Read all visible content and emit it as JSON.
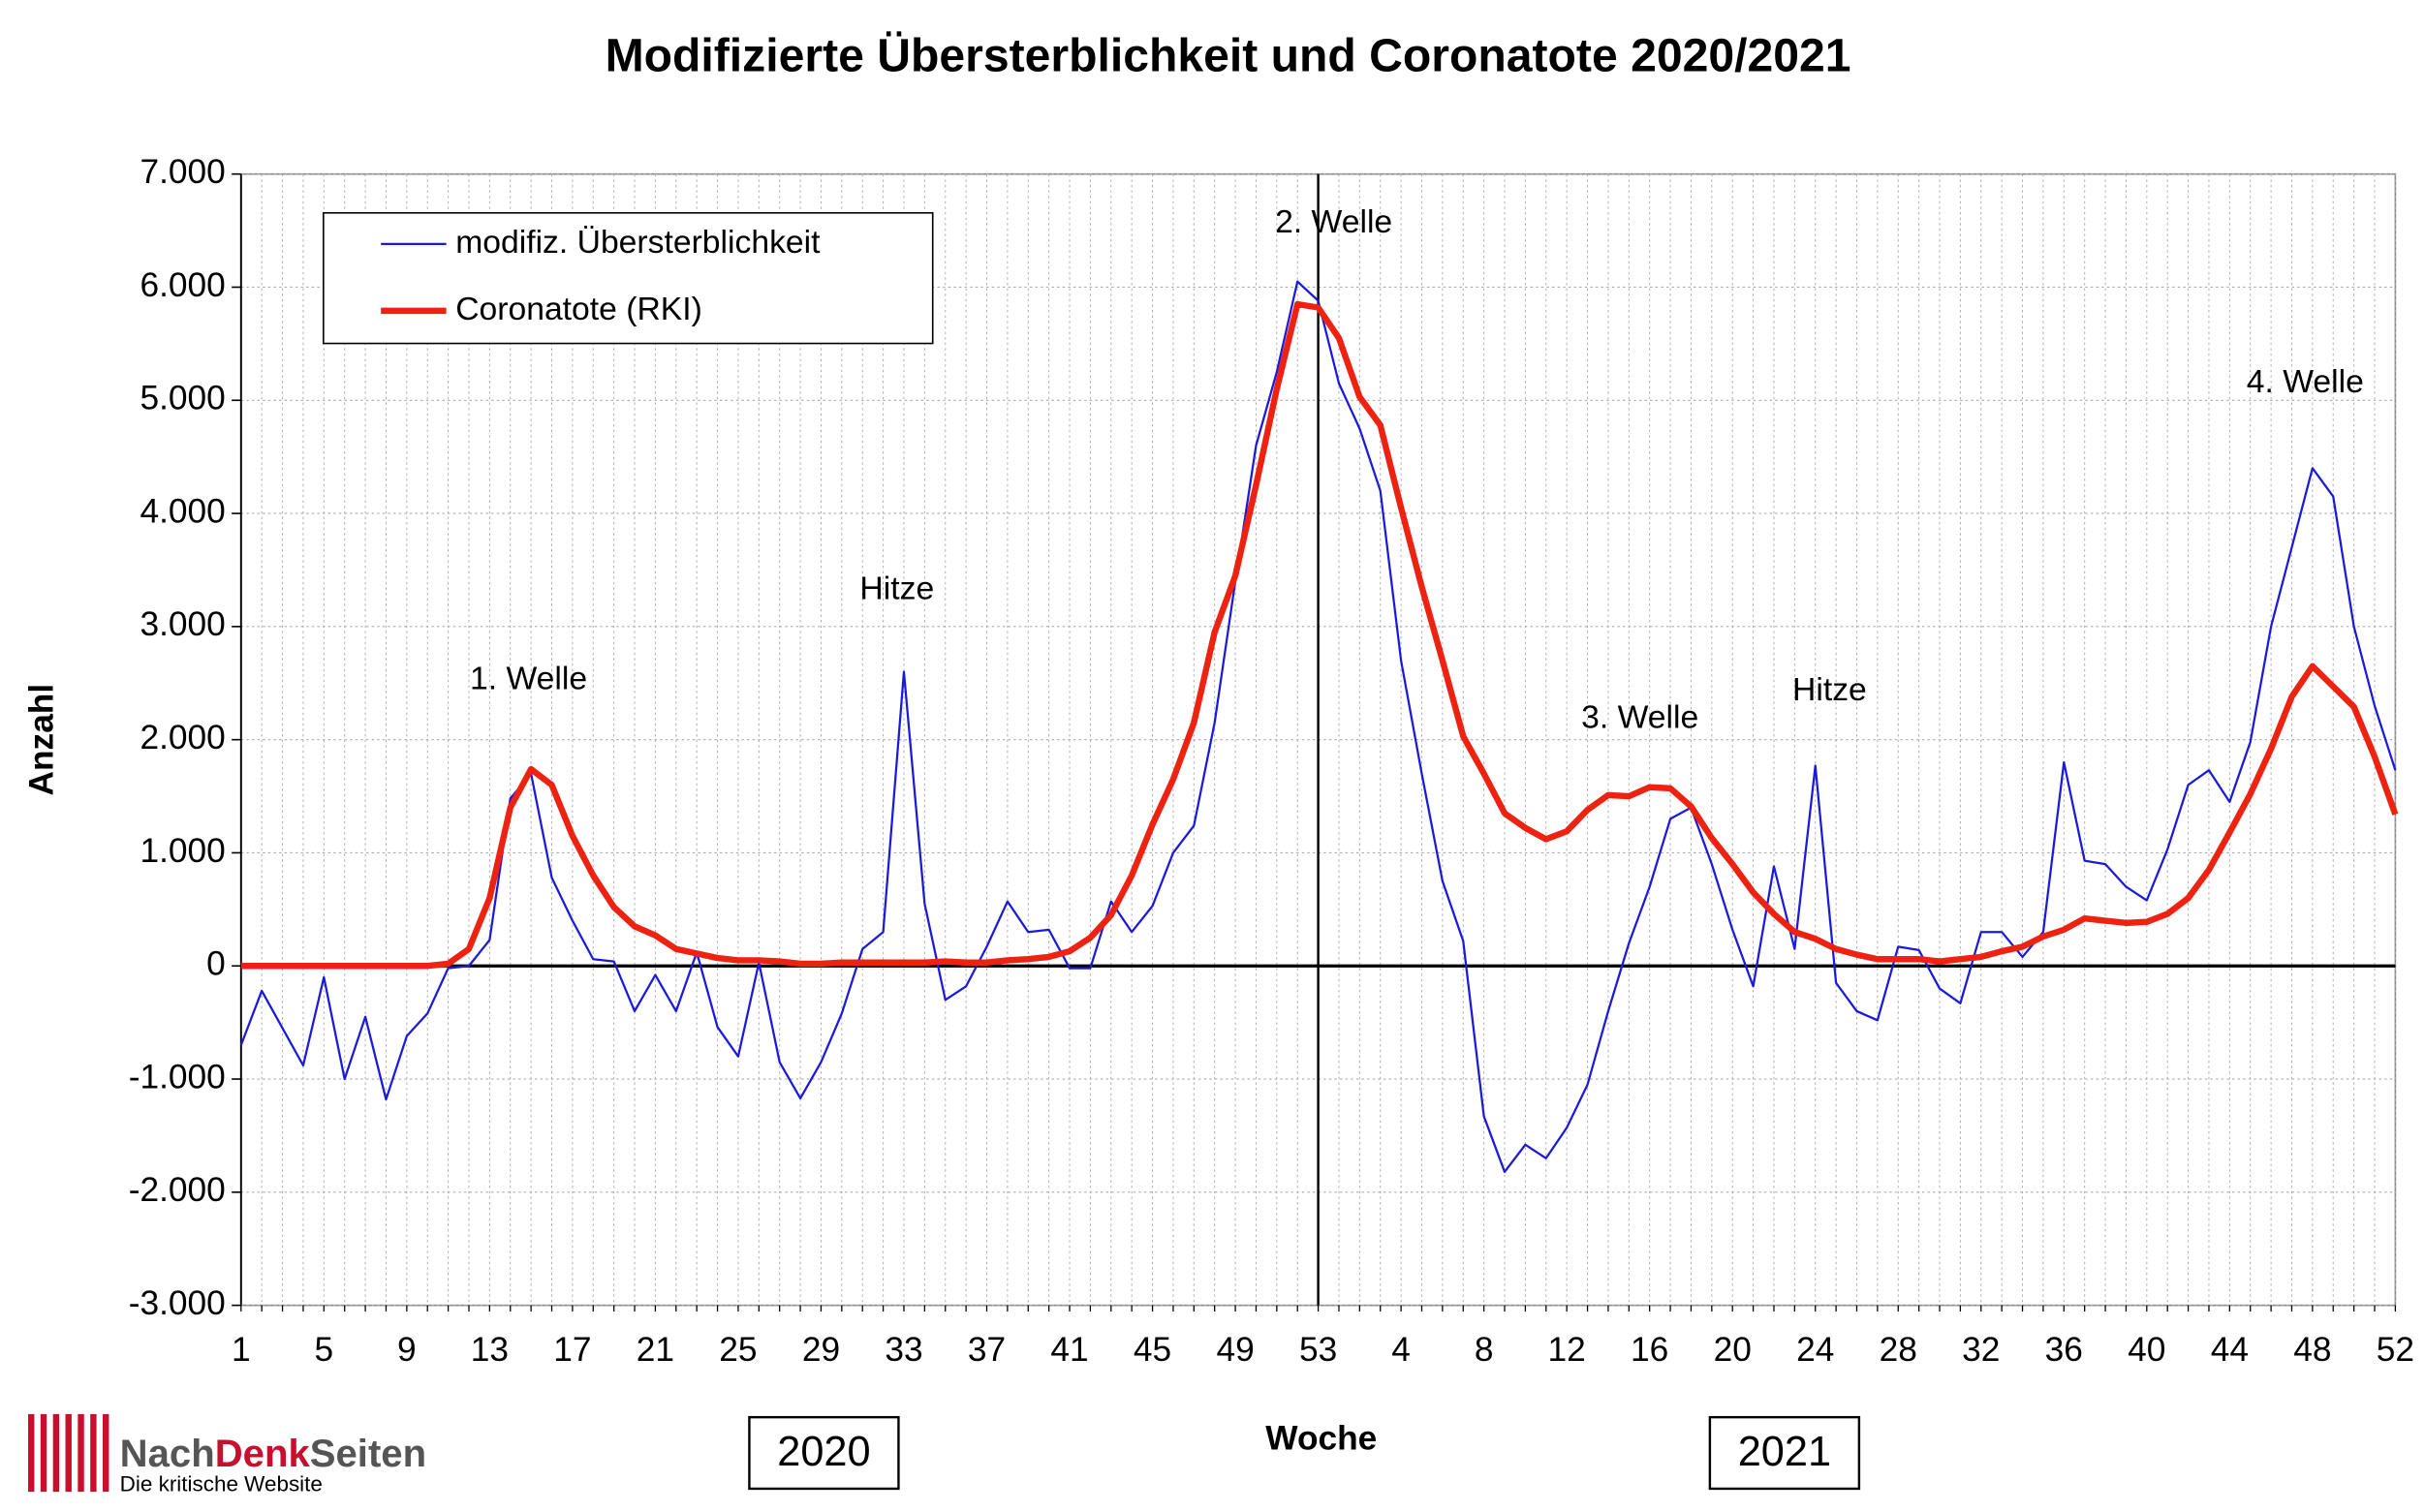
{
  "chart_data": {
    "type": "line",
    "title": "Modifizierte Übersterblichkeit und Coronatote 2020/2021",
    "x_label": "Woche",
    "y_label": "Anzahl",
    "categories": [
      "1",
      null,
      null,
      null,
      "5",
      null,
      null,
      null,
      "9",
      null,
      null,
      null,
      "13",
      null,
      null,
      null,
      "17",
      null,
      null,
      null,
      "21",
      null,
      null,
      null,
      "25",
      null,
      null,
      null,
      "29",
      null,
      null,
      null,
      "33",
      null,
      null,
      null,
      "37",
      null,
      null,
      null,
      "41",
      null,
      null,
      null,
      "45",
      null,
      null,
      null,
      "49",
      null,
      null,
      null,
      "53",
      null,
      null,
      null,
      "4",
      null,
      null,
      null,
      "8",
      null,
      null,
      null,
      "12",
      null,
      null,
      null,
      "16",
      null,
      null,
      null,
      "20",
      null,
      null,
      null,
      "24",
      null,
      null,
      null,
      "28",
      null,
      null,
      null,
      "32",
      null,
      null,
      null,
      "36",
      null,
      null,
      null,
      "40",
      null,
      null,
      null,
      "44",
      null,
      null,
      null,
      "48",
      null,
      null,
      null,
      "52"
    ],
    "series": [
      {
        "name": "modifiz. Übersterblichkeit",
        "color": "#1a1adc",
        "values": [
          -700,
          -220,
          -550,
          -880,
          -100,
          -1000,
          -450,
          -1180,
          -620,
          -420,
          -20,
          0,
          230,
          1480,
          1700,
          780,
          400,
          60,
          40,
          -400,
          -80,
          -400,
          120,
          -540,
          -800,
          30,
          -850,
          -1170,
          -850,
          -420,
          150,
          300,
          2600,
          550,
          -300,
          -180,
          170,
          570,
          300,
          320,
          -20,
          -20,
          570,
          300,
          530,
          1000,
          1240,
          2150,
          3400,
          4600,
          5250,
          6050,
          5880,
          5150,
          4750,
          4200,
          2700,
          1700,
          750,
          220,
          -1330,
          -1820,
          -1580,
          -1700,
          -1430,
          -1050,
          -400,
          200,
          700,
          1300,
          1400,
          900,
          320,
          -180,
          880,
          150,
          1770,
          -150,
          -400,
          -480,
          170,
          140,
          -200,
          -330,
          300,
          300,
          80,
          300,
          1800,
          930,
          900,
          700,
          580,
          1030,
          1600,
          1730,
          1450,
          1980,
          3000,
          3700,
          4400,
          4150,
          3000,
          2300,
          1730
        ]
      },
      {
        "name": "Coronatote (RKI)",
        "color": "#ee2211",
        "values": [
          0,
          0,
          0,
          0,
          0,
          0,
          0,
          0,
          0,
          0,
          20,
          150,
          600,
          1400,
          1740,
          1600,
          1150,
          800,
          520,
          350,
          270,
          150,
          110,
          70,
          50,
          50,
          40,
          20,
          20,
          30,
          30,
          30,
          30,
          30,
          40,
          30,
          30,
          50,
          60,
          80,
          130,
          250,
          450,
          800,
          1250,
          1650,
          2150,
          2950,
          3450,
          4250,
          5100,
          5850,
          5820,
          5550,
          5030,
          4780,
          4050,
          3350,
          2700,
          2030,
          1700,
          1350,
          1220,
          1120,
          1190,
          1380,
          1510,
          1500,
          1580,
          1570,
          1410,
          1130,
          900,
          650,
          460,
          300,
          240,
          150,
          100,
          60,
          60,
          60,
          40,
          60,
          80,
          130,
          170,
          260,
          320,
          420,
          400,
          380,
          390,
          460,
          600,
          850,
          1180,
          1520,
          1920,
          2380,
          2650,
          2470,
          2290,
          1850,
          1340
        ]
      }
    ],
    "ylim": [
      -3000,
      7000
    ],
    "yticks": [
      {
        "value": -3000,
        "label": "-3.000"
      },
      {
        "value": -2000,
        "label": "-2.000"
      },
      {
        "value": -1000,
        "label": "-1.000"
      },
      0,
      {
        "value": 1000,
        "label": "1.000"
      },
      {
        "value": 2000,
        "label": "2.000"
      },
      {
        "value": 3000,
        "label": "3.000"
      },
      {
        "value": 4000,
        "label": "4.000"
      },
      {
        "value": 5000,
        "label": "5.000"
      },
      {
        "value": 6000,
        "label": "6.000"
      },
      {
        "value": 7000,
        "label": "7.000"
      }
    ],
    "grid": true,
    "annotations": [
      "1. Welle",
      "Hitze",
      "2. Welle",
      "3. Welle",
      "Hitze",
      "4. Welle"
    ],
    "years": [
      "2020",
      "2021"
    ],
    "logo": {
      "parts": [
        "Nach",
        "Denk",
        "Seiten"
      ],
      "tagline": "Die kritische Website"
    }
  }
}
